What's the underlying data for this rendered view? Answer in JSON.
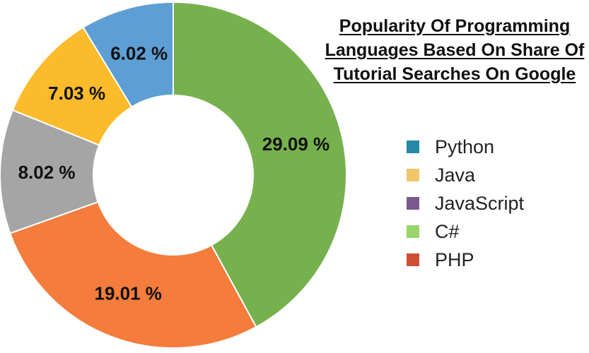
{
  "chart_data": {
    "type": "pie",
    "title_lines": [
      "Popularity Of Programming",
      "Languages Based On Share Of",
      "Tutorial Searches On Google"
    ],
    "slices": [
      {
        "value": 29.09,
        "label": "29.09 %",
        "color": "#76b14e"
      },
      {
        "value": 19.01,
        "label": "19.01 %",
        "color": "#f47c3c"
      },
      {
        "value": 8.02,
        "label": "8.02 %",
        "color": "#a5a5a5"
      },
      {
        "value": 7.03,
        "label": "7.03 %",
        "color": "#fbbb2a"
      },
      {
        "value": 6.02,
        "label": "6.02 %",
        "color": "#5d9fd4"
      }
    ],
    "legend": [
      {
        "name": "Python",
        "color": "#2389a6"
      },
      {
        "name": "Java",
        "color": "#f2c76a"
      },
      {
        "name": "JavaScript",
        "color": "#7a5a8c"
      },
      {
        "name": "C#",
        "color": "#98d56a"
      },
      {
        "name": "PHP",
        "color": "#cf4f32"
      }
    ]
  }
}
